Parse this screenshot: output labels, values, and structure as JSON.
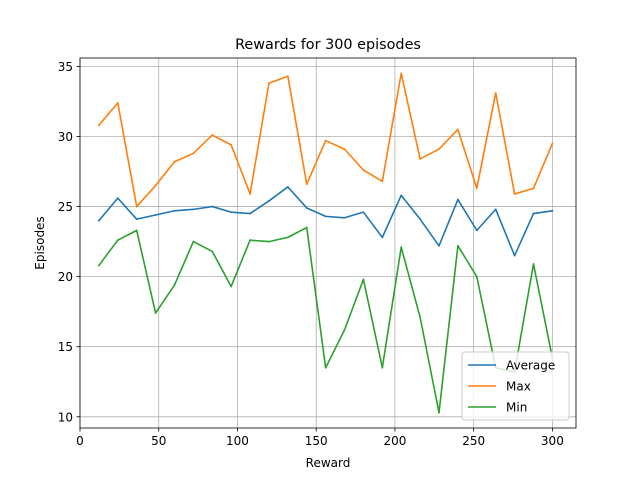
{
  "chart_data": {
    "type": "line",
    "title": "Rewards for 300 episodes",
    "xlabel": "Reward",
    "ylabel": "Episodes",
    "xlim": [
      0,
      315
    ],
    "ylim": [
      9.2,
      35.6
    ],
    "xticks": [
      0,
      50,
      100,
      150,
      200,
      250,
      300
    ],
    "yticks": [
      10,
      15,
      20,
      25,
      30,
      35
    ],
    "grid": true,
    "legend_position": "lower right",
    "x": [
      12,
      24,
      36,
      48,
      60,
      72,
      84,
      96,
      108,
      120,
      132,
      144,
      156,
      168,
      180,
      192,
      204,
      216,
      228,
      240,
      252,
      264,
      276,
      288,
      300
    ],
    "series": [
      {
        "name": "Average",
        "color": "#1f77b4",
        "values": [
          24.0,
          25.6,
          24.1,
          24.4,
          24.7,
          24.8,
          25.0,
          24.6,
          24.5,
          25.4,
          26.4,
          24.9,
          24.3,
          24.2,
          24.6,
          22.8,
          25.8,
          24.1,
          22.2,
          25.5,
          23.3,
          24.8,
          21.5,
          24.5,
          24.7
        ]
      },
      {
        "name": "Max",
        "color": "#ff7f0e",
        "values": [
          30.8,
          32.4,
          25.0,
          26.5,
          28.2,
          28.8,
          30.1,
          29.4,
          25.9,
          33.8,
          34.3,
          26.6,
          29.7,
          29.1,
          27.6,
          26.8,
          34.5,
          28.4,
          29.1,
          30.5,
          26.3,
          33.1,
          25.9,
          26.3,
          29.5
        ]
      },
      {
        "name": "Min",
        "color": "#2ca02c",
        "values": [
          20.8,
          22.6,
          23.3,
          17.4,
          19.4,
          22.5,
          21.8,
          19.3,
          22.6,
          22.5,
          22.8,
          23.5,
          13.5,
          16.2,
          19.8,
          13.5,
          22.1,
          17.1,
          10.3,
          22.2,
          20.0,
          13.5,
          13.2,
          20.9,
          14.2
        ]
      }
    ]
  }
}
